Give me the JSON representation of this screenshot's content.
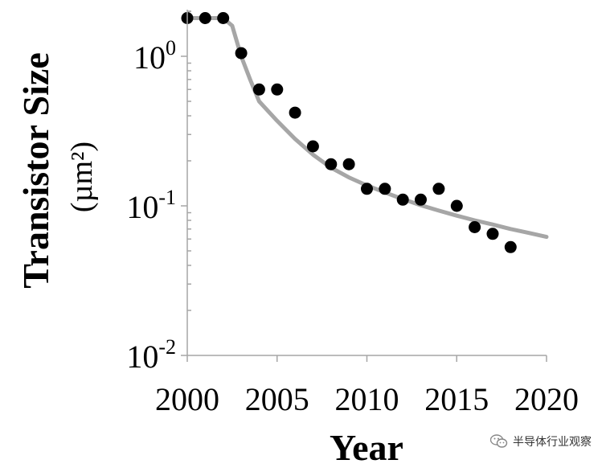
{
  "chart_data": {
    "type": "scatter",
    "title": "",
    "xlabel": "Year",
    "ylabel": "Transistor Size",
    "ylabel_unit": "(µm²)",
    "xlim": [
      2000,
      2020
    ],
    "x_ticks": [
      "2000",
      "2005",
      "2010",
      "2015",
      "2020"
    ],
    "y_scale": "log",
    "ylim": [
      0.01,
      2.0
    ],
    "y_ticks": [
      {
        "value": 1,
        "base": "10",
        "exp": "0"
      },
      {
        "value": 0.1,
        "base": "10",
        "exp": "-1"
      },
      {
        "value": 0.01,
        "base": "10",
        "exp": "-2"
      }
    ],
    "grid": false,
    "legend": "none",
    "series": [
      {
        "type": "scatter",
        "color": "#000000",
        "x": [
          2000,
          2001,
          2002,
          2003,
          2004,
          2005,
          2006,
          2007,
          2008,
          2009,
          2010,
          2011,
          2012,
          2013,
          2014,
          2015,
          2016,
          2017,
          2018
        ],
        "y": [
          1.8,
          1.8,
          1.8,
          1.05,
          0.6,
          0.6,
          0.42,
          0.25,
          0.19,
          0.19,
          0.13,
          0.13,
          0.11,
          0.11,
          0.13,
          0.1,
          0.072,
          0.065,
          0.053
        ]
      },
      {
        "type": "line",
        "color": "#a6a6a6",
        "x": [
          2000,
          2001,
          2002,
          2002.5,
          2003,
          2003.5,
          2004,
          2005,
          2006,
          2007,
          2008,
          2009,
          2010,
          2011,
          2012,
          2013,
          2014,
          2015,
          2016,
          2017,
          2018,
          2019,
          2020
        ],
        "y": [
          1.8,
          1.8,
          1.8,
          1.6,
          1.0,
          0.7,
          0.5,
          0.37,
          0.28,
          0.22,
          0.18,
          0.155,
          0.137,
          0.123,
          0.111,
          0.101,
          0.093,
          0.086,
          0.08,
          0.075,
          0.07,
          0.066,
          0.062
        ]
      }
    ]
  },
  "watermark": {
    "text": "半导体行业观察",
    "icon": "wechat-icon"
  }
}
